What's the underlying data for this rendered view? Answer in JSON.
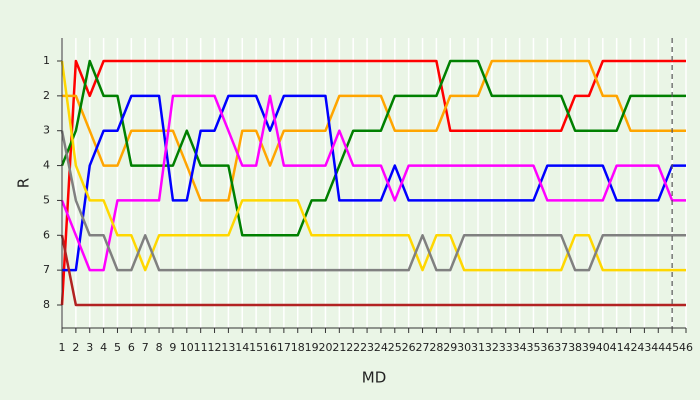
{
  "chart_data": {
    "type": "line",
    "x_label": "MD",
    "y_label": "R",
    "x": [
      1,
      2,
      3,
      4,
      5,
      6,
      7,
      8,
      9,
      10,
      11,
      12,
      13,
      14,
      15,
      16,
      17,
      18,
      19,
      20,
      21,
      22,
      23,
      24,
      25,
      26,
      27,
      28,
      29,
      30,
      31,
      32,
      33,
      34,
      35,
      36,
      37,
      38,
      39,
      40,
      41,
      42,
      43,
      44,
      45,
      46
    ],
    "xlim": [
      1,
      46
    ],
    "xticks": [
      1,
      2,
      3,
      4,
      5,
      6,
      7,
      8,
      9,
      10,
      11,
      12,
      13,
      14,
      15,
      16,
      17,
      18,
      19,
      20,
      21,
      22,
      23,
      24,
      25,
      26,
      27,
      28,
      29,
      30,
      31,
      32,
      33,
      34,
      35,
      36,
      37,
      38,
      39,
      40,
      41,
      42,
      43,
      44,
      45,
      46
    ],
    "ylim": [
      8.66,
      0.34
    ],
    "yticks": [
      1,
      2,
      3,
      4,
      5,
      6,
      7,
      8
    ],
    "vline": 45,
    "grid": true,
    "series": [
      {
        "color": "#ff0000",
        "values": [
          8,
          1,
          2,
          1,
          1,
          1,
          1,
          1,
          1,
          1,
          1,
          1,
          1,
          1,
          1,
          1,
          1,
          1,
          1,
          1,
          1,
          1,
          1,
          1,
          1,
          1,
          1,
          1,
          3,
          3,
          3,
          3,
          3,
          3,
          3,
          3,
          3,
          2,
          2,
          1,
          1,
          1,
          1,
          1,
          1,
          1
        ]
      },
      {
        "color": "#ffa500",
        "values": [
          2,
          2,
          3,
          4,
          4,
          3,
          3,
          3,
          3,
          4,
          5,
          5,
          5,
          3,
          3,
          4,
          3,
          3,
          3,
          3,
          2,
          2,
          2,
          2,
          3,
          3,
          3,
          3,
          2,
          2,
          2,
          1,
          1,
          1,
          1,
          1,
          1,
          1,
          1,
          2,
          2,
          3,
          3,
          3,
          3,
          3
        ]
      },
      {
        "color": "#008000",
        "values": [
          4,
          3,
          1,
          2,
          2,
          4,
          4,
          4,
          4,
          3,
          4,
          4,
          4,
          6,
          6,
          6,
          6,
          6,
          5,
          5,
          4,
          3,
          3,
          3,
          2,
          2,
          2,
          2,
          1,
          1,
          1,
          2,
          2,
          2,
          2,
          2,
          2,
          3,
          3,
          3,
          3,
          2,
          2,
          2,
          2,
          2
        ]
      },
      {
        "color": "#0000ff",
        "values": [
          7,
          7,
          4,
          3,
          3,
          2,
          2,
          2,
          5,
          5,
          3,
          3,
          2,
          2,
          2,
          3,
          2,
          2,
          2,
          2,
          5,
          5,
          5,
          5,
          4,
          5,
          5,
          5,
          5,
          5,
          5,
          5,
          5,
          5,
          5,
          4,
          4,
          4,
          4,
          4,
          5,
          5,
          5,
          5,
          4,
          4
        ]
      },
      {
        "color": "#ff00ff",
        "values": [
          5,
          6,
          7,
          7,
          5,
          5,
          5,
          5,
          2,
          2,
          2,
          2,
          3,
          4,
          4,
          2,
          4,
          4,
          4,
          4,
          3,
          4,
          4,
          4,
          5,
          4,
          4,
          4,
          4,
          4,
          4,
          4,
          4,
          4,
          4,
          5,
          5,
          5,
          5,
          5,
          4,
          4,
          4,
          4,
          5,
          5
        ]
      },
      {
        "color": "#ffd700",
        "values": [
          1,
          4,
          5,
          5,
          6,
          6,
          7,
          6,
          6,
          6,
          6,
          6,
          6,
          5,
          5,
          5,
          5,
          5,
          6,
          6,
          6,
          6,
          6,
          6,
          6,
          6,
          7,
          6,
          6,
          7,
          7,
          7,
          7,
          7,
          7,
          7,
          7,
          6,
          6,
          7,
          7,
          7,
          7,
          7,
          7,
          7
        ]
      },
      {
        "color": "#808080",
        "values": [
          3,
          5,
          6,
          6,
          7,
          7,
          6,
          7,
          7,
          7,
          7,
          7,
          7,
          7,
          7,
          7,
          7,
          7,
          7,
          7,
          7,
          7,
          7,
          7,
          7,
          7,
          6,
          7,
          7,
          6,
          6,
          6,
          6,
          6,
          6,
          6,
          6,
          7,
          7,
          6,
          6,
          6,
          6,
          6,
          6,
          6
        ]
      },
      {
        "color": "#b22222",
        "values": [
          6,
          8,
          8,
          8,
          8,
          8,
          8,
          8,
          8,
          8,
          8,
          8,
          8,
          8,
          8,
          8,
          8,
          8,
          8,
          8,
          8,
          8,
          8,
          8,
          8,
          8,
          8,
          8,
          8,
          8,
          8,
          8,
          8,
          8,
          8,
          8,
          8,
          8,
          8,
          8,
          8,
          8,
          8,
          8,
          8,
          8
        ]
      }
    ]
  }
}
